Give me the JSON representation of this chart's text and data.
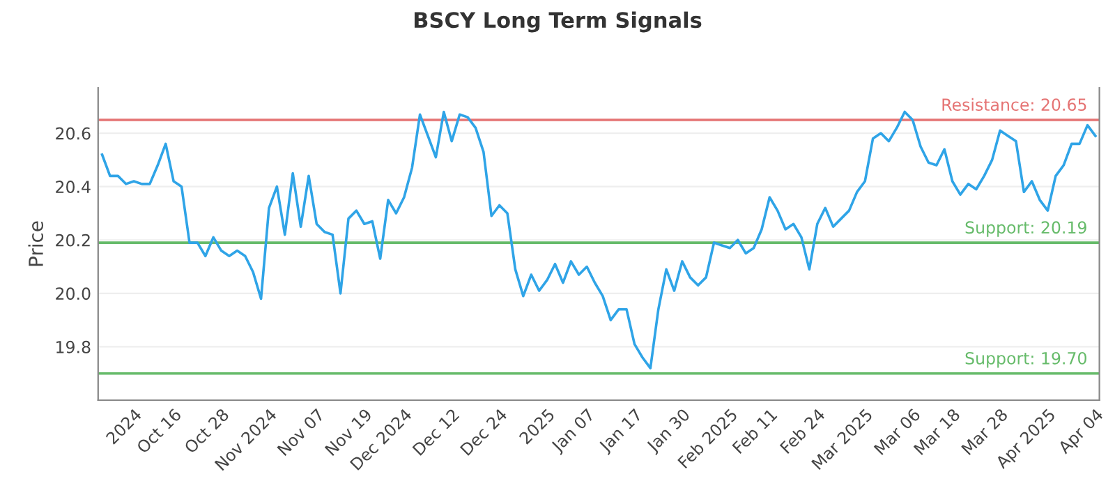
{
  "chart_data": {
    "type": "line",
    "title": "BSCY Long Term Signals",
    "ylabel": "Price",
    "categories": [
      null,
      null,
      null,
      null,
      "2024",
      null,
      null,
      null,
      null,
      "Oct 16",
      null,
      null,
      null,
      null,
      null,
      "Oct 28",
      null,
      null,
      null,
      null,
      null,
      "Nov 2024",
      null,
      null,
      null,
      null,
      null,
      "Nov 07",
      null,
      null,
      null,
      null,
      null,
      "Nov 19",
      null,
      null,
      null,
      null,
      "Dec 2024",
      null,
      null,
      null,
      null,
      null,
      "Dec 12",
      null,
      null,
      null,
      null,
      null,
      "Dec 24",
      null,
      null,
      null,
      null,
      null,
      "2025",
      null,
      null,
      null,
      null,
      "Jan 07",
      null,
      null,
      null,
      null,
      null,
      "Jan 17",
      null,
      null,
      null,
      null,
      null,
      "Jan 30",
      null,
      null,
      null,
      null,
      null,
      "Feb 2025",
      null,
      null,
      null,
      null,
      "Feb 11",
      null,
      null,
      null,
      null,
      null,
      "Feb 24",
      null,
      null,
      null,
      null,
      null,
      "Mar 2025",
      null,
      null,
      null,
      null,
      null,
      "Mar 06",
      null,
      null,
      null,
      null,
      "Mar 18",
      null,
      null,
      null,
      null,
      null,
      "Mar 28",
      null,
      null,
      null,
      null,
      null,
      "Apr 2025",
      null,
      null,
      null,
      null,
      null,
      "Apr 04"
    ],
    "series": [
      {
        "color": "#2fa4e7",
        "values": [
          20.52,
          20.44,
          20.44,
          20.41,
          20.42,
          20.41,
          20.41,
          20.48,
          20.56,
          20.42,
          20.4,
          20.19,
          20.19,
          20.14,
          20.21,
          20.16,
          20.14,
          20.16,
          20.14,
          20.08,
          19.98,
          20.32,
          20.4,
          20.22,
          20.45,
          20.25,
          20.44,
          20.26,
          20.23,
          20.22,
          20.0,
          20.28,
          20.31,
          20.26,
          20.27,
          20.13,
          20.35,
          20.3,
          20.36,
          20.47,
          20.67,
          20.59,
          20.51,
          20.68,
          20.57,
          20.67,
          20.66,
          20.62,
          20.53,
          20.29,
          20.33,
          20.3,
          20.09,
          19.99,
          20.07,
          20.01,
          20.05,
          20.11,
          20.04,
          20.12,
          20.07,
          20.1,
          20.04,
          19.99,
          19.9,
          19.94,
          19.94,
          19.81,
          19.76,
          19.72,
          19.94,
          20.09,
          20.01,
          20.12,
          20.06,
          20.03,
          20.06,
          20.19,
          20.18,
          20.17,
          20.2,
          20.15,
          20.17,
          20.24,
          20.36,
          20.31,
          20.24,
          20.26,
          20.21,
          20.09,
          20.26,
          20.32,
          20.25,
          20.28,
          20.31,
          20.38,
          20.42,
          20.58,
          20.6,
          20.57,
          20.62,
          20.68,
          20.65,
          20.55,
          20.49,
          20.48,
          20.54,
          20.42,
          20.37,
          20.41,
          20.39,
          20.44,
          20.5,
          20.61,
          20.59,
          20.57,
          20.38,
          20.42,
          20.35,
          20.31,
          20.44,
          20.48,
          20.56,
          20.56,
          20.63,
          20.59
        ]
      }
    ],
    "ylim": [
      19.6,
      20.77
    ],
    "yticks": [
      {
        "value": 19.8,
        "label": "19.8"
      },
      {
        "value": 20.0,
        "label": "20.0"
      },
      {
        "value": 20.2,
        "label": "20.2"
      },
      {
        "value": 20.4,
        "label": "20.4"
      },
      {
        "value": 20.6,
        "label": "20.6"
      }
    ],
    "grid": "y",
    "legend": false,
    "ref_lines": [
      {
        "axis": "y",
        "value": 20.65,
        "label": "Resistance: 20.65",
        "color": "#e57373"
      },
      {
        "axis": "y",
        "value": 20.19,
        "label": "Support: 20.19",
        "color": "#66bb6a"
      },
      {
        "axis": "y",
        "value": 19.7,
        "label": "Support: 19.70",
        "color": "#66bb6a"
      }
    ]
  }
}
